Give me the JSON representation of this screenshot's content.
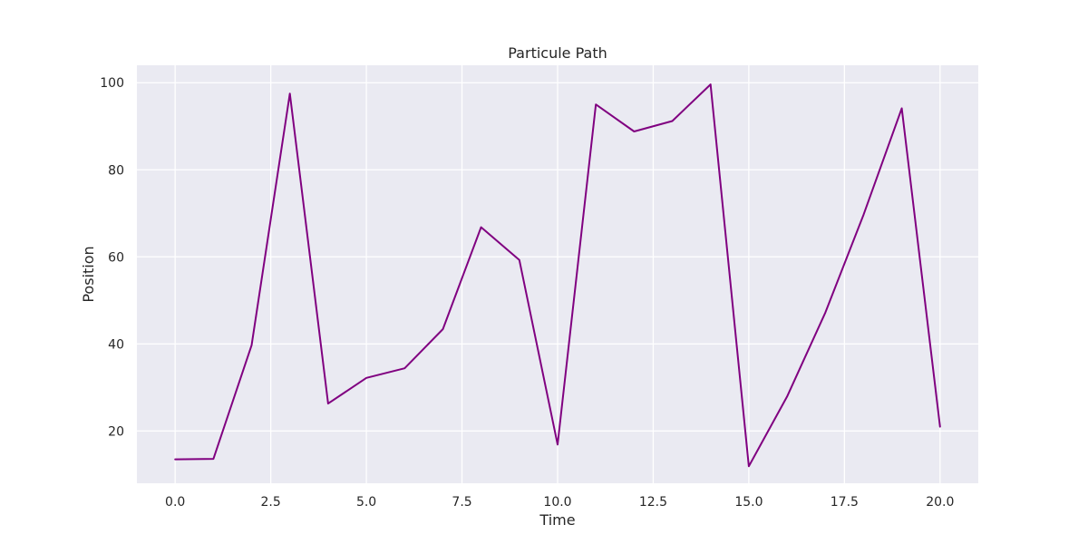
{
  "chart_data": {
    "type": "line",
    "title": "Particule Path",
    "xlabel": "Time",
    "ylabel": "Position",
    "xlim": [
      -1.0,
      21.0
    ],
    "ylim": [
      8.0,
      104.0
    ],
    "xticks": [
      0.0,
      2.5,
      5.0,
      7.5,
      10.0,
      12.5,
      15.0,
      17.5,
      20.0
    ],
    "xtick_labels": [
      "0.0",
      "2.5",
      "5.0",
      "7.5",
      "10.0",
      "12.5",
      "15.0",
      "17.5",
      "20.0"
    ],
    "yticks": [
      20,
      40,
      60,
      80,
      100
    ],
    "ytick_labels": [
      "20",
      "40",
      "60",
      "80",
      "100"
    ],
    "grid": true,
    "series": [
      {
        "color": "#800080",
        "x": [
          0,
          1,
          2,
          3,
          4,
          5,
          6,
          7,
          8,
          9,
          10,
          11,
          12,
          13,
          14,
          15,
          16,
          17,
          18,
          19,
          20
        ],
        "y": [
          13.5,
          13.6,
          39.7,
          97.5,
          26.3,
          32.2,
          34.4,
          43.4,
          66.8,
          59.3,
          16.9,
          95.0,
          88.8,
          91.2,
          99.6,
          11.9,
          27.9,
          47.2,
          69.7,
          94.1,
          21.0
        ]
      }
    ],
    "colors": {
      "plot_background": "#eaeaf2",
      "grid": "#ffffff",
      "text": "#262626"
    }
  }
}
